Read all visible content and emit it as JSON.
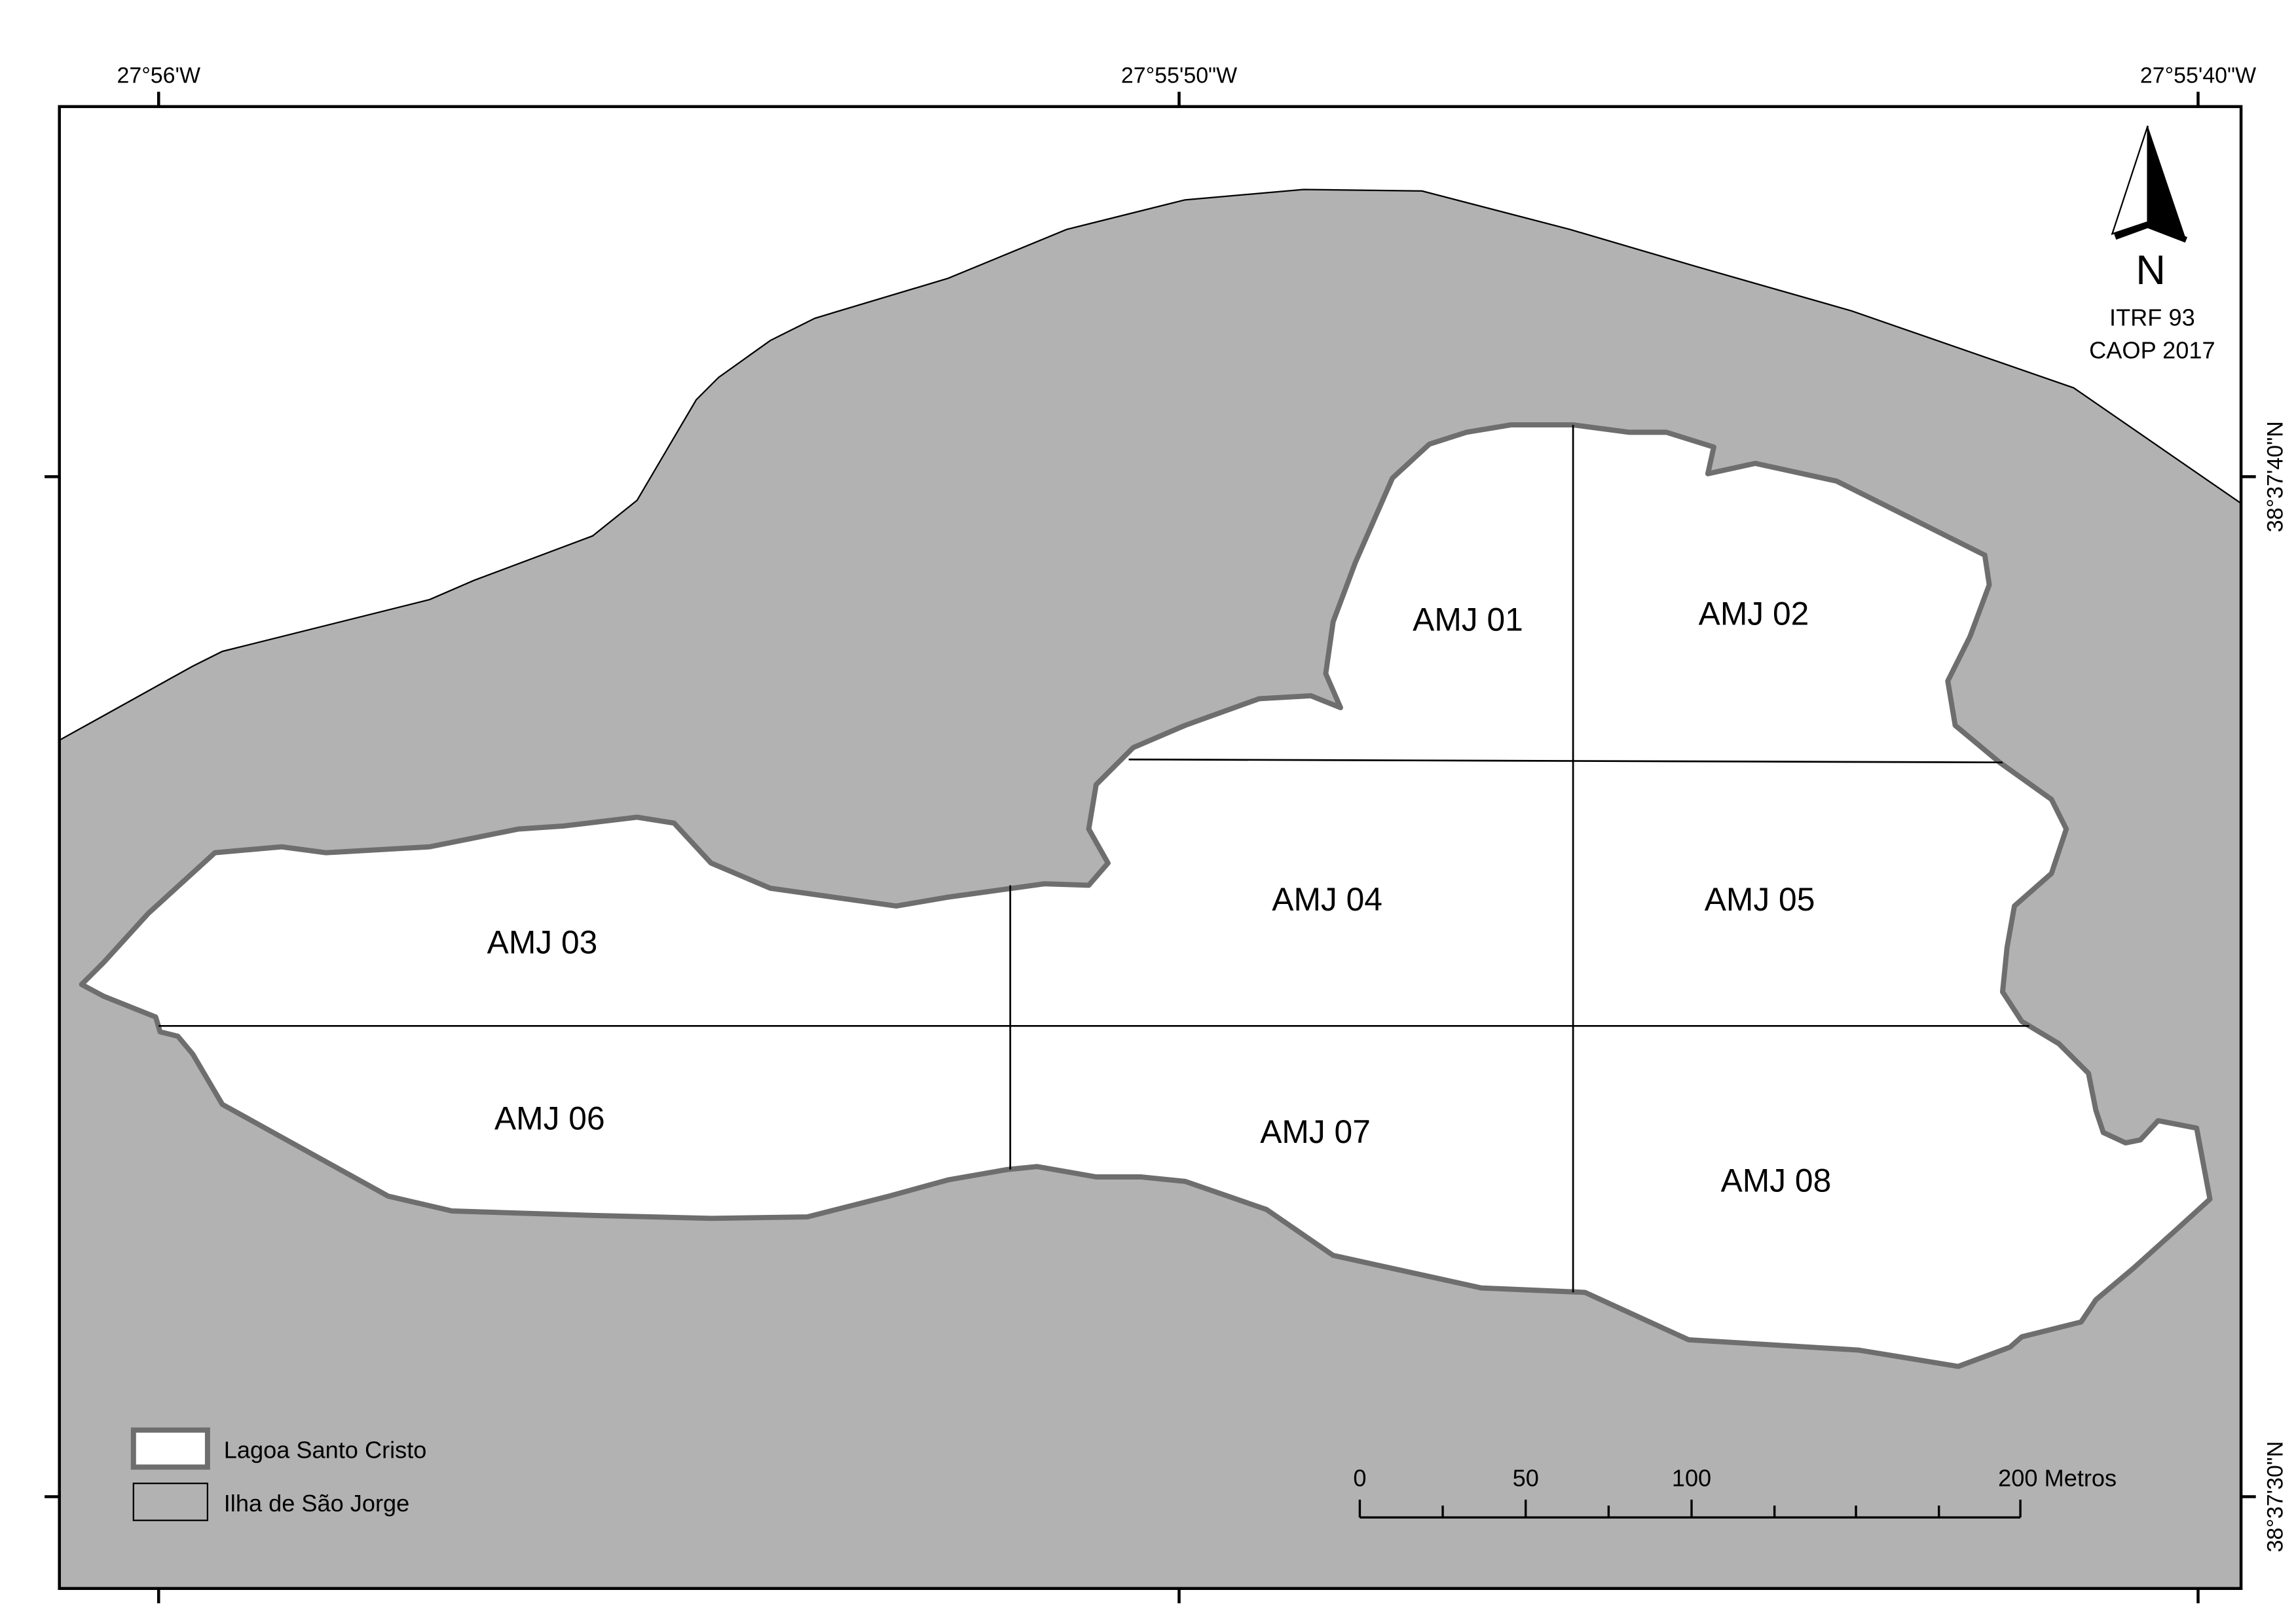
{
  "map": {
    "graticule": {
      "top": [
        "27°56'W",
        "27°55'50\"W",
        "27°55'40\"W"
      ],
      "right": [
        "38°37'40\"N",
        "38°37'30\"N"
      ]
    },
    "north_arrow": {
      "label": "N",
      "datum": "ITRF 93",
      "source": "CAOP 2017"
    },
    "zones": [
      "AMJ 01",
      "AMJ 02",
      "AMJ 03",
      "AMJ 04",
      "AMJ 05",
      "AMJ 06",
      "AMJ 07",
      "AMJ 08"
    ],
    "legend": [
      "Lagoa Santo Cristo",
      "Ilha de São Jorge"
    ],
    "scale_bar": [
      "0",
      "50",
      "100",
      "200 Metros"
    ]
  }
}
